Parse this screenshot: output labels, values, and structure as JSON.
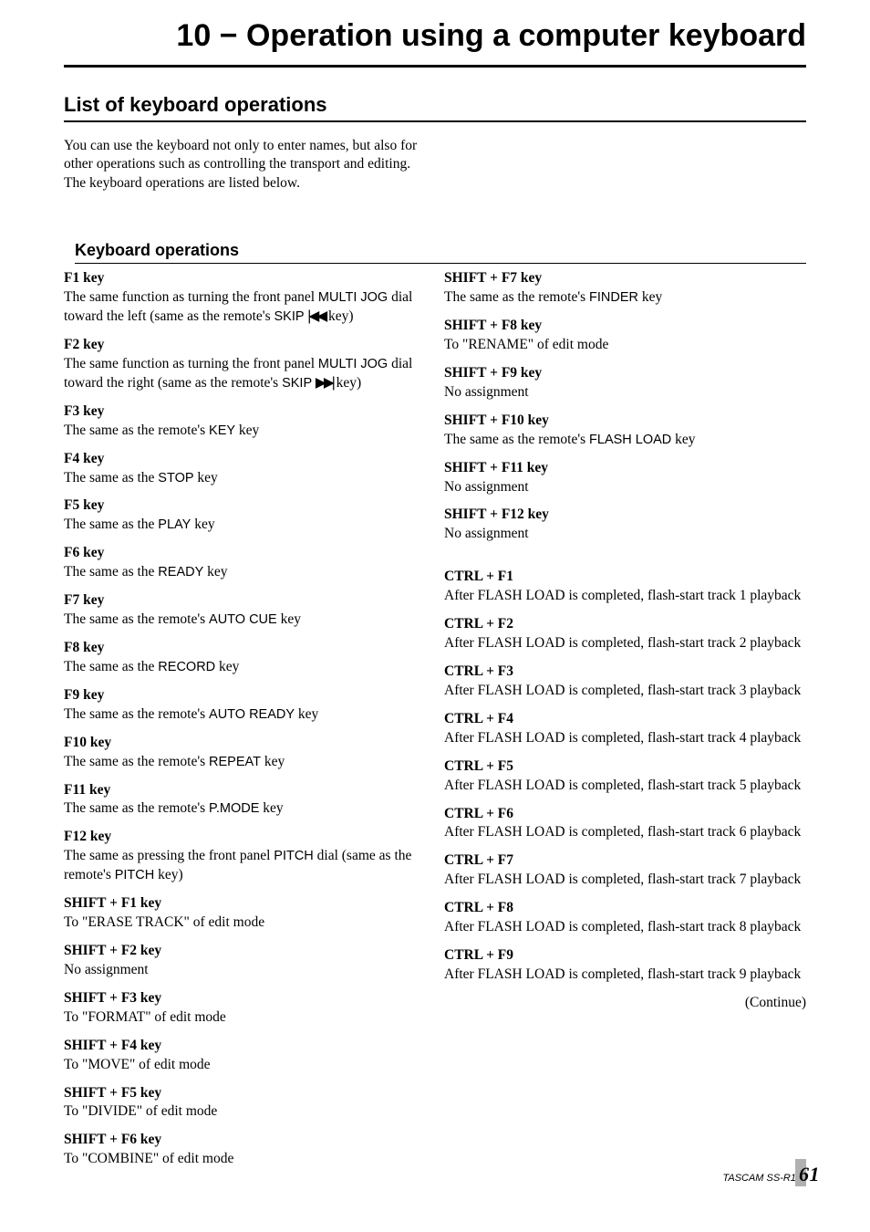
{
  "chapter_title": "10 − Operation using a computer keyboard",
  "section_title": "List of keyboard operations",
  "intro": "You can use the keyboard not only to enter names, but also for other operations such as controlling the transport and editing. The keyboard operations are listed below.",
  "sub_title": "Keyboard operations",
  "left": [
    {
      "key": "F1 key",
      "desc_pre": "The same function as turning the front panel ",
      "mono1": "MULTI JOG",
      "desc_mid": " dial toward the left (same as the remote's ",
      "mono2": "SKIP ",
      "icon": "|◀◀",
      "desc_post": " key)"
    },
    {
      "key": "F2 key",
      "desc_pre": "The same function as turning the front panel ",
      "mono1": "MULTI JOG",
      "desc_mid": " dial toward the right (same as the remote's ",
      "mono2": "SKIP ",
      "icon": "▶▶|",
      "desc_post": " key)"
    },
    {
      "key": "F3 key",
      "desc_pre": "The same as the remote's ",
      "mono1": "KEY",
      "desc_post": " key"
    },
    {
      "key": "F4 key",
      "desc_pre": "The same as the ",
      "mono1": "STOP",
      "desc_post": " key"
    },
    {
      "key": "F5 key",
      "desc_pre": "The same as the ",
      "mono1": "PLAY",
      "desc_post": " key"
    },
    {
      "key": "F6 key",
      "desc_pre": "The same as the ",
      "mono1": "READY",
      "desc_post": " key"
    },
    {
      "key": "F7 key",
      "desc_pre": "The same as the remote's ",
      "mono1": "AUTO CUE",
      "desc_post": " key"
    },
    {
      "key": "F8 key",
      "desc_pre": "The same as the ",
      "mono1": "RECORD",
      "desc_post": " key"
    },
    {
      "key": "F9 key",
      "desc_pre": "The same as the remote's ",
      "mono1": "AUTO READY",
      "desc_post": " key"
    },
    {
      "key": "F10 key",
      "desc_pre": "The same as the remote's ",
      "mono1": "REPEAT",
      "desc_post": " key"
    },
    {
      "key": "F11 key",
      "desc_pre": "The same as the remote's ",
      "mono1": "P.MODE",
      "desc_post": " key"
    },
    {
      "key": "F12 key",
      "desc_pre": "The same as pressing the front panel ",
      "mono1": "PITCH",
      "desc_mid": " dial (same as the remote's ",
      "mono2": "PITCH",
      "desc_post": " key)"
    },
    {
      "key": "SHIFT + F1 key",
      "plain": "To \"ERASE TRACK\" of edit mode"
    },
    {
      "key": "SHIFT + F2 key",
      "plain": "No assignment"
    },
    {
      "key": "SHIFT + F3 key",
      "plain": "To \"FORMAT\" of edit mode"
    },
    {
      "key": "SHIFT + F4 key",
      "plain": "To \"MOVE\" of edit mode"
    },
    {
      "key": "SHIFT + F5 key",
      "plain": "To \"DIVIDE\" of edit mode"
    },
    {
      "key": "SHIFT + F6 key",
      "plain": "To \"COMBINE\" of edit mode"
    }
  ],
  "right_top": [
    {
      "key": "SHIFT + F7 key",
      "desc_pre": "The same as the remote's ",
      "mono1": "FINDER",
      "desc_post": " key"
    },
    {
      "key": "SHIFT + F8 key",
      "plain": "To \"RENAME\" of edit mode"
    },
    {
      "key": "SHIFT + F9 key",
      "plain": "No assignment"
    },
    {
      "key": "SHIFT + F10 key",
      "desc_pre": "The same as the remote's ",
      "mono1": "FLASH LOAD",
      "desc_post": " key"
    },
    {
      "key": "SHIFT + F11 key",
      "plain": "No assignment"
    },
    {
      "key": "SHIFT + F12 key",
      "plain": "No assignment"
    }
  ],
  "right_bottom": [
    {
      "key": "CTRL + F1",
      "plain": "After FLASH LOAD is completed, flash-start track 1 playback"
    },
    {
      "key": "CTRL + F2",
      "plain": "After FLASH LOAD is completed, flash-start track 2 playback"
    },
    {
      "key": "CTRL + F3",
      "plain": "After FLASH LOAD is completed, flash-start track 3 playback"
    },
    {
      "key": "CTRL + F4",
      "plain": "After FLASH LOAD is completed, flash-start track 4 playback"
    },
    {
      "key": "CTRL + F5",
      "plain": "After FLASH LOAD is completed, flash-start track 5 playback"
    },
    {
      "key": "CTRL + F6",
      "plain": "After FLASH LOAD is completed, flash-start track 6 playback"
    },
    {
      "key": "CTRL + F7",
      "plain": "After FLASH LOAD is completed, flash-start track 7 playback"
    },
    {
      "key": "CTRL + F8",
      "plain": "After FLASH LOAD is completed, flash-start track 8 playback"
    },
    {
      "key": "CTRL + F9",
      "plain": "After FLASH LOAD is completed, flash-start track 9 playback"
    }
  ],
  "continue_label": "(Continue)",
  "footer_product": "TASCAM  SS-R1",
  "page_number": "61"
}
